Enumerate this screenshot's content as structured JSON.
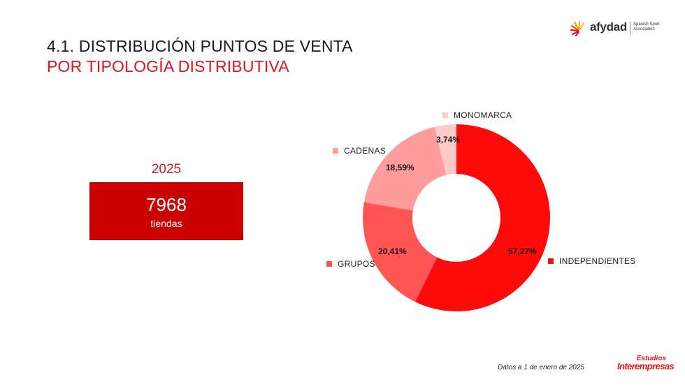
{
  "header": {
    "title_line1": "4.1. DISTRIBUCIÓN PUNTOS DE VENTA",
    "title_line2": "POR TIPOLOGÍA DISTRIBUTIVA"
  },
  "logo": {
    "name": "afydad",
    "subtitle_line1": "Spanish Sport",
    "subtitle_line2": "Association"
  },
  "kpi": {
    "year": "2025",
    "value": "7968",
    "unit": "tiendas"
  },
  "colors": {
    "accent_red": "#e3121b",
    "kpi_box": "#cc0000",
    "independientes": "#ff0a0a",
    "grupos": "#ff5555",
    "cadenas": "#ff9d9d",
    "monomarca": "#ffcaca"
  },
  "chart_data": {
    "type": "pie",
    "variant": "donut",
    "title": "Distribución puntos de venta por tipología distributiva",
    "categories": [
      "INDEPENDIENTES",
      "GRUPOS",
      "CADENAS",
      "MONOMARCA"
    ],
    "values": [
      57.27,
      20.41,
      18.59,
      3.74
    ],
    "value_labels": [
      "57,27%",
      "20,41%",
      "18,59%",
      "3,74%"
    ],
    "colors": [
      "#ff0a0a",
      "#ff5555",
      "#ff9d9d",
      "#ffcaca"
    ],
    "start_angle": "12 o'clock, clockwise",
    "legend_position": "labels placed next to slices"
  },
  "footer": {
    "note": "Datos a 1 de enero de 2025",
    "brand_top": "Estudios",
    "brand_main": "Interempresas"
  }
}
